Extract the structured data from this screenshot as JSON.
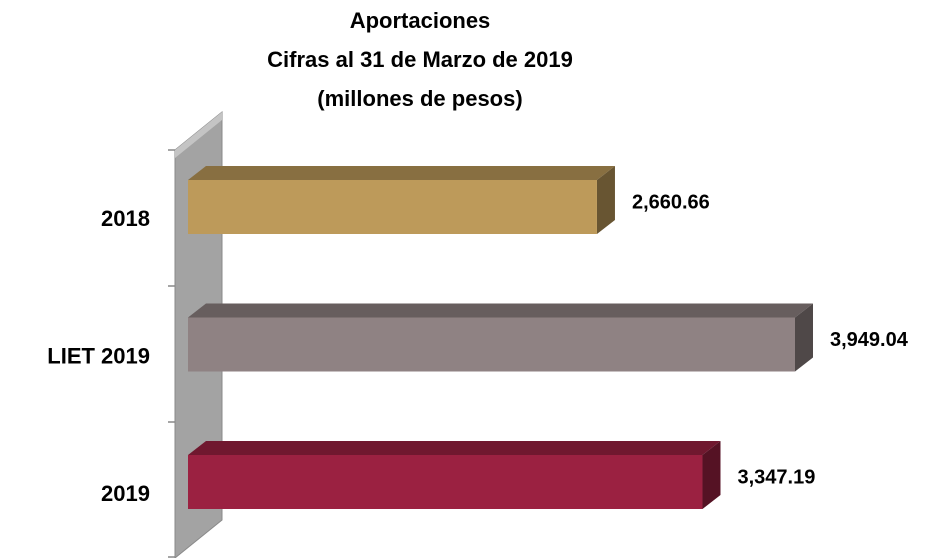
{
  "chart_data": {
    "type": "bar3d",
    "title": [
      "Aportaciones",
      "Cifras al 31 de Marzo de 2019",
      "(millones de pesos)"
    ],
    "categories": [
      "2018",
      "LIET 2019",
      "2019"
    ],
    "values": [
      2660.66,
      3949.04,
      3347.19
    ],
    "value_labels": [
      "2,660.66",
      "3,949.04",
      "3,347.19"
    ],
    "colors": [
      "#bd9a5a",
      "#8f8283",
      "#9b2141"
    ]
  }
}
